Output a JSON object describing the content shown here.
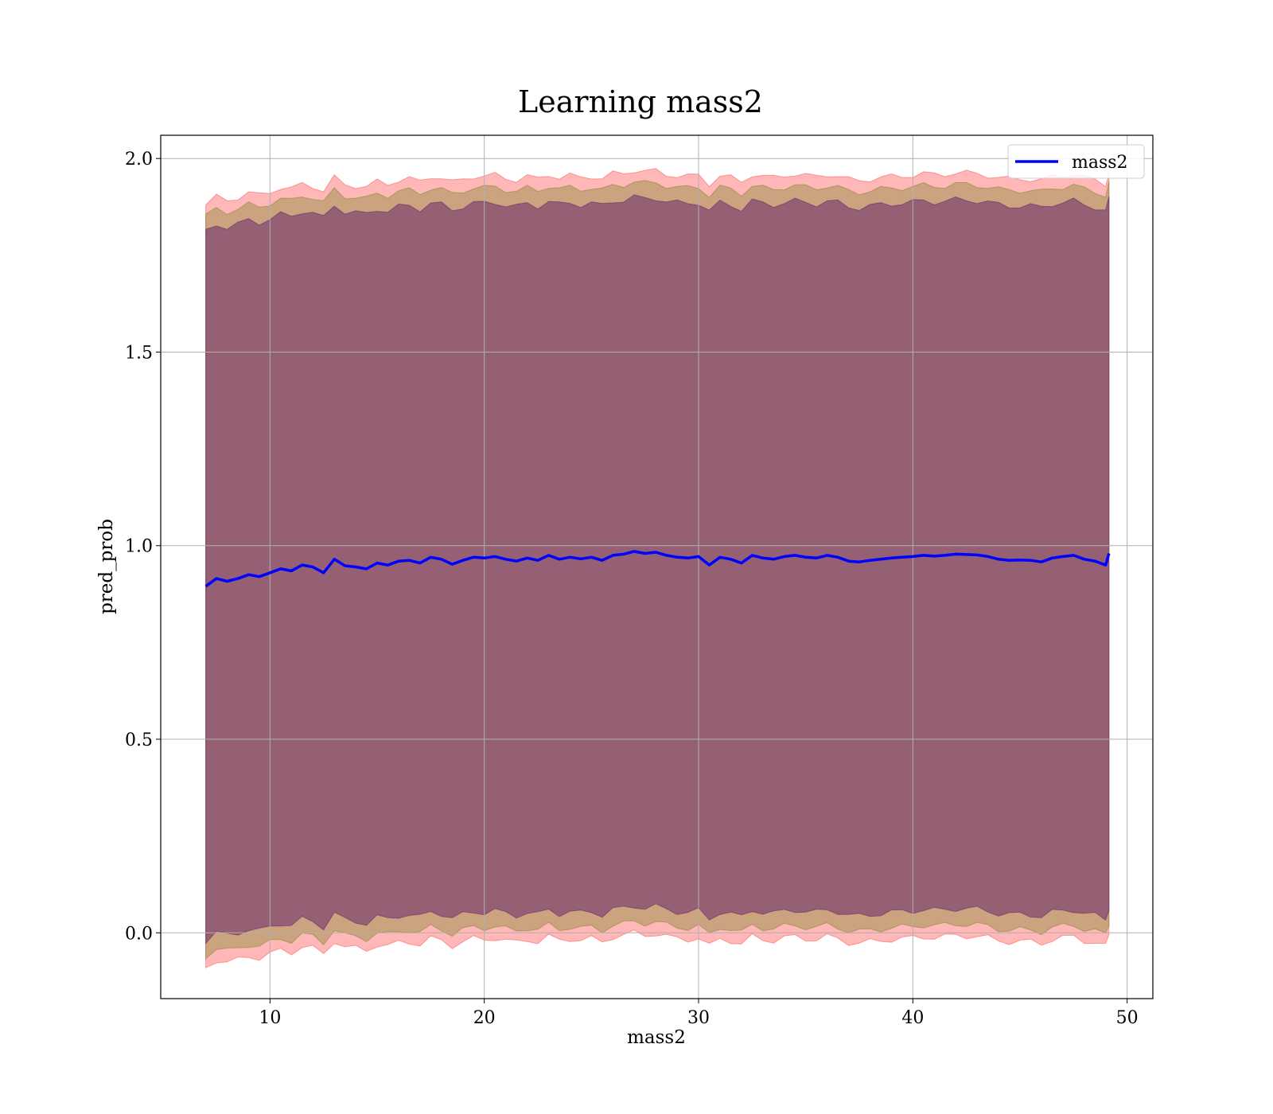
{
  "chart_data": {
    "type": "line",
    "title": "Learning mass2",
    "xlabel": "mass2",
    "ylabel": "pred_prob",
    "xlim": [
      4.9,
      51.2
    ],
    "ylim": [
      -0.17,
      2.06
    ],
    "xticks": [
      10,
      20,
      30,
      40,
      50
    ],
    "yticks": [
      0.0,
      0.5,
      1.0,
      1.5,
      2.0
    ],
    "xtick_labels": [
      "10",
      "20",
      "30",
      "40",
      "50"
    ],
    "ytick_labels": [
      "0.0",
      "0.5",
      "1.0",
      "1.5",
      "2.0"
    ],
    "grid": true,
    "legend": {
      "position": "top-right",
      "entries": [
        "mass2"
      ]
    },
    "series": [
      {
        "name": "mass2",
        "color": "#0000ff",
        "x": [
          7.0,
          7.5,
          8.0,
          8.5,
          9.0,
          9.5,
          10.0,
          10.5,
          11.0,
          11.5,
          12.0,
          12.5,
          13.0,
          13.5,
          14.0,
          14.5,
          15.0,
          15.5,
          16.0,
          16.5,
          17.0,
          17.5,
          18.0,
          18.5,
          19.0,
          19.5,
          20.0,
          20.5,
          21.0,
          21.5,
          22.0,
          22.5,
          23.0,
          23.5,
          24.0,
          24.5,
          25.0,
          25.5,
          26.0,
          26.5,
          27.0,
          27.5,
          28.0,
          28.5,
          29.0,
          29.5,
          30.0,
          30.5,
          31.0,
          31.5,
          32.0,
          32.5,
          33.0,
          33.5,
          34.0,
          34.5,
          35.0,
          35.5,
          36.0,
          36.5,
          37.0,
          37.5,
          38.0,
          38.5,
          39.0,
          39.5,
          40.0,
          40.5,
          41.0,
          41.5,
          42.0,
          42.5,
          43.0,
          43.5,
          44.0,
          44.5,
          45.0,
          45.5,
          46.0,
          46.5,
          47.0,
          47.5,
          48.0,
          48.5,
          49.0,
          49.15
        ],
        "y": [
          0.895,
          0.915,
          0.908,
          0.915,
          0.925,
          0.92,
          0.93,
          0.94,
          0.935,
          0.95,
          0.945,
          0.93,
          0.965,
          0.948,
          0.945,
          0.94,
          0.955,
          0.95,
          0.96,
          0.962,
          0.955,
          0.97,
          0.965,
          0.952,
          0.962,
          0.97,
          0.968,
          0.972,
          0.965,
          0.96,
          0.968,
          0.962,
          0.975,
          0.965,
          0.97,
          0.966,
          0.97,
          0.962,
          0.975,
          0.978,
          0.985,
          0.98,
          0.983,
          0.975,
          0.97,
          0.968,
          0.972,
          0.95,
          0.97,
          0.965,
          0.955,
          0.975,
          0.968,
          0.965,
          0.972,
          0.975,
          0.97,
          0.968,
          0.975,
          0.97,
          0.96,
          0.958,
          0.962,
          0.965,
          0.968,
          0.97,
          0.972,
          0.975,
          0.973,
          0.975,
          0.978,
          0.977,
          0.976,
          0.972,
          0.965,
          0.962,
          0.963,
          0.962,
          0.958,
          0.968,
          0.972,
          0.975,
          0.965,
          0.96,
          0.95,
          0.98
        ]
      }
    ],
    "bands": [
      {
        "name": "",
        "color": "#ff6060",
        "opacity": 0.45,
        "lower_offset": -0.985,
        "upper_offset": 0.985
      },
      {
        "name": "",
        "color": "#8b8b3a",
        "opacity": 0.45,
        "lower_offset": -0.955,
        "upper_offset": 0.955
      },
      {
        "name": "",
        "color": "#6b2a6b",
        "opacity": 0.55,
        "lower_offset": -0.915,
        "upper_offset": 0.915
      }
    ]
  }
}
